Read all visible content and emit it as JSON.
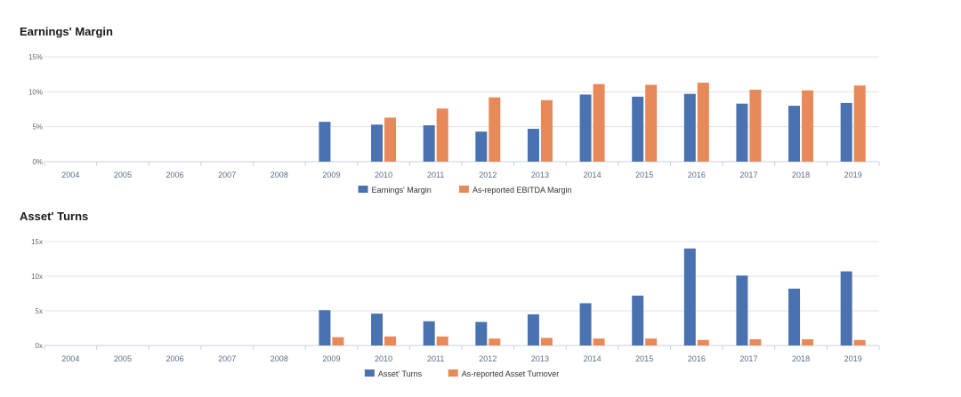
{
  "charts": [
    {
      "title": "Earnings' Margin",
      "y_unit": "%",
      "ylim": [
        0,
        15
      ],
      "yticks": [
        {
          "value": 0,
          "label": "0%"
        },
        {
          "value": 5,
          "label": "5%"
        },
        {
          "value": 10,
          "label": "10%"
        },
        {
          "value": 15,
          "label": "15%"
        }
      ]
    },
    {
      "title": "Asset' Turns",
      "y_unit": "x",
      "ylim": [
        0,
        15
      ],
      "yticks": [
        {
          "value": 0,
          "label": "0x"
        },
        {
          "value": 5,
          "label": "5x"
        },
        {
          "value": 10,
          "label": "10x"
        },
        {
          "value": 15,
          "label": "15x"
        }
      ]
    }
  ],
  "colors": {
    "primary": "#4a72b0",
    "secondary": "#e8895a",
    "grid": "#e3e3e3",
    "axis": "#c8d1dc"
  },
  "chart_data": [
    {
      "type": "bar",
      "title": "Earnings' Margin",
      "categories": [
        "2004",
        "2005",
        "2006",
        "2007",
        "2008",
        "2009",
        "2010",
        "2011",
        "2012",
        "2013",
        "2014",
        "2015",
        "2016",
        "2017",
        "2018",
        "2019"
      ],
      "series": [
        {
          "name": "Earnings' Margin",
          "values": [
            null,
            null,
            null,
            null,
            null,
            5.7,
            5.3,
            5.2,
            4.3,
            4.7,
            9.6,
            9.3,
            9.7,
            8.3,
            8.0,
            8.4
          ]
        },
        {
          "name": "As-reported EBITDA Margin",
          "values": [
            null,
            null,
            null,
            null,
            null,
            null,
            6.3,
            7.6,
            9.2,
            8.8,
            11.1,
            11.0,
            11.3,
            10.3,
            10.2,
            10.9
          ]
        }
      ],
      "ylim": [
        0,
        15
      ],
      "legend": "bottom-center"
    },
    {
      "type": "bar",
      "title": "Asset' Turns",
      "categories": [
        "2004",
        "2005",
        "2006",
        "2007",
        "2008",
        "2009",
        "2010",
        "2011",
        "2012",
        "2013",
        "2014",
        "2015",
        "2016",
        "2017",
        "2018",
        "2019"
      ],
      "series": [
        {
          "name": "Asset' Turns",
          "values": [
            null,
            null,
            null,
            null,
            null,
            5.1,
            4.6,
            3.5,
            3.4,
            4.5,
            6.1,
            7.2,
            14.0,
            10.1,
            8.2,
            10.7
          ]
        },
        {
          "name": "As-reported Asset Turnover",
          "values": [
            null,
            null,
            null,
            null,
            null,
            1.2,
            1.3,
            1.3,
            1.0,
            1.1,
            1.0,
            1.0,
            0.8,
            0.9,
            0.9,
            0.8
          ]
        }
      ],
      "ylim": [
        0,
        15
      ],
      "legend": "bottom-center"
    }
  ]
}
